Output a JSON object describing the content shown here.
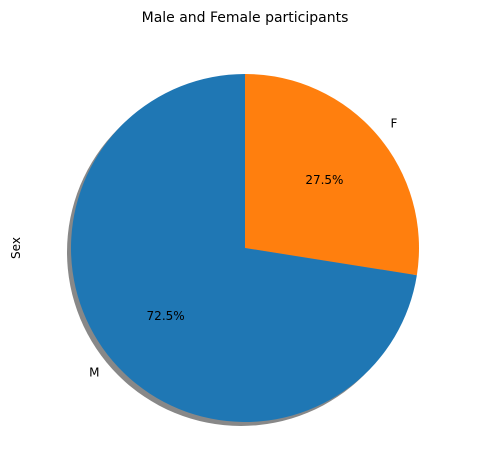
{
  "chart_data": {
    "type": "pie",
    "title": "Male and Female participants",
    "ylabel": "Sex",
    "categories": [
      "F",
      "M"
    ],
    "values": [
      27.5,
      72.5
    ],
    "labels": [
      "27.5%",
      "72.5%"
    ],
    "colors": [
      "#ff7f0e",
      "#1f77b4"
    ],
    "start_angle_deg": 90,
    "direction": "clockwise",
    "shadow": true
  }
}
